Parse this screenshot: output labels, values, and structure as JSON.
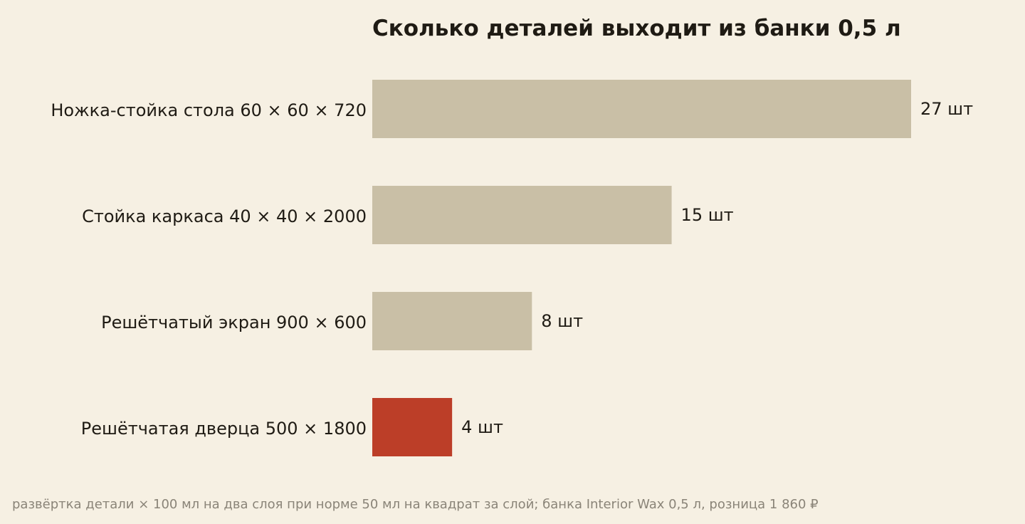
{
  "chart_data": {
    "type": "bar",
    "orientation": "horizontal",
    "title": "Сколько деталей выходит из банки 0,5 л",
    "categories": [
      "Ножка-стойка стола 60 × 60 × 720",
      "Стойка каркаса 40 × 40 × 2000",
      "Решётчатый экран 900 × 600",
      "Решётчатая дверца 500 × 1800"
    ],
    "values": [
      27,
      15,
      8,
      4
    ],
    "value_labels": [
      "27 шт",
      "15 шт",
      "8 шт",
      "4 шт"
    ],
    "unit": "шт",
    "xlim": [
      0,
      27
    ],
    "grid": false,
    "legend": "none",
    "colors": {
      "default": "#c9bfa6",
      "highlight": "#bc3e28",
      "background": "#f6f0e3",
      "text": "#1f1b14",
      "footnote": "#8a8478"
    },
    "highlight_index": 3,
    "footnote": "развёртка детали × 100 мл на два слоя при норме 50 мл на квадрат за слой; банка Interior Wax 0,5 л, розница 1 860 ₽"
  }
}
